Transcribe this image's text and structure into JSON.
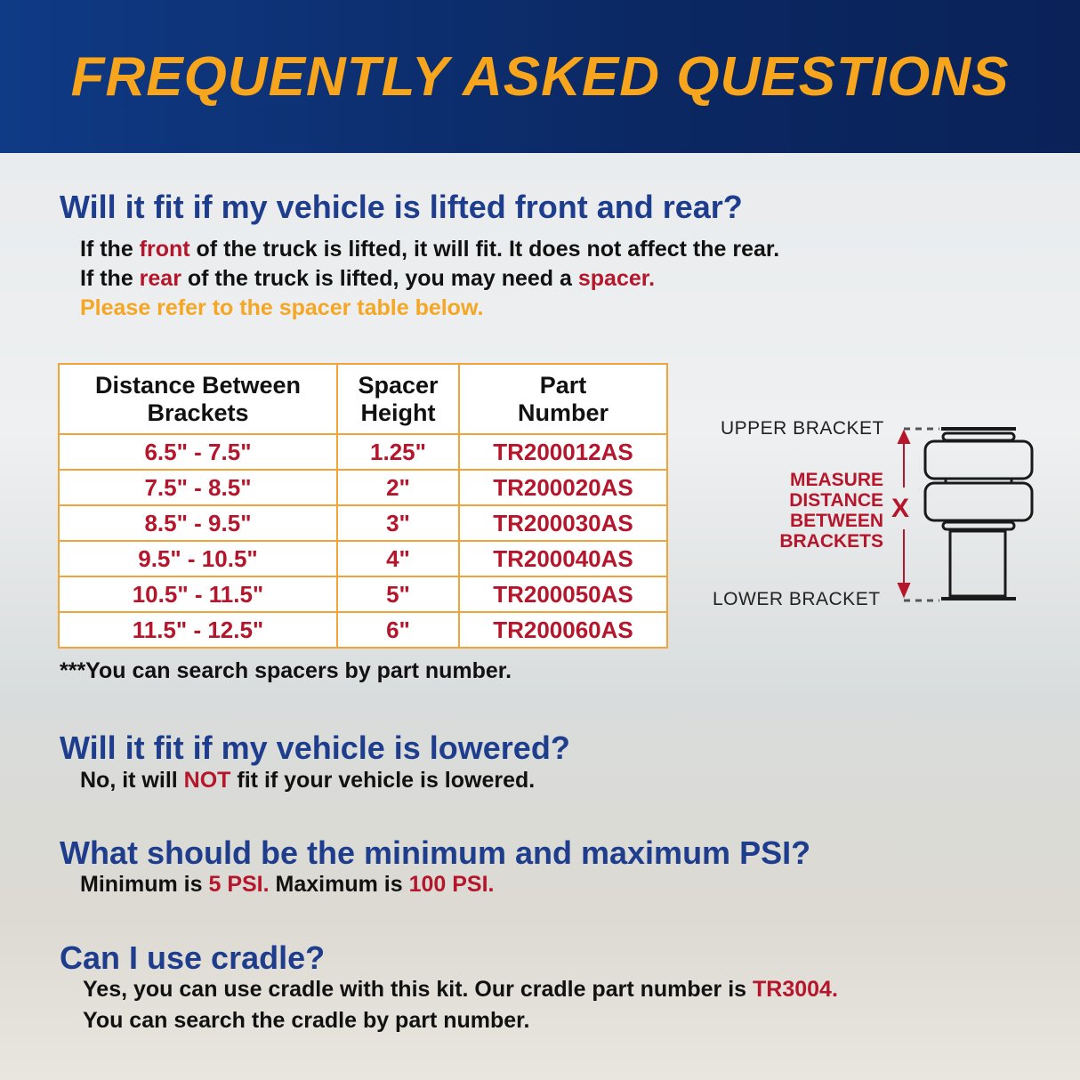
{
  "header": {
    "title": "FREQUENTLY ASKED QUESTIONS"
  },
  "colors": {
    "navy": "#0b2863",
    "orange": "#f7a51c",
    "blue": "#1e3d8d",
    "red": "#b5162b"
  },
  "faq1": {
    "question": "Will it fit if my vehicle is lifted front and rear?",
    "line1": [
      "If the ",
      "front",
      " of the truck is lifted, it will fit. It does not affect the rear."
    ],
    "line2": [
      "If the ",
      "rear",
      " of the truck is lifted, you may need a ",
      "spacer."
    ],
    "line3": "Please refer to the spacer table below."
  },
  "table": {
    "headers": [
      "Distance Between Brackets",
      "Spacer Height",
      "Part Number"
    ],
    "rows": [
      [
        "6.5\" - 7.5\"",
        "1.25\"",
        "TR200012AS"
      ],
      [
        "7.5\" - 8.5\"",
        "2\"",
        "TR200020AS"
      ],
      [
        "8.5\" - 9.5\"",
        "3\"",
        "TR200030AS"
      ],
      [
        "9.5\" - 10.5\"",
        "4\"",
        "TR200040AS"
      ],
      [
        "10.5\" - 11.5\"",
        "5\"",
        "TR200050AS"
      ],
      [
        "11.5\" - 12.5\"",
        "6\"",
        "TR200060AS"
      ]
    ],
    "note": "***You can search spacers by part number."
  },
  "diagram": {
    "upper": "UPPER BRACKET",
    "lower": "LOWER BRACKET",
    "measure": "MEASURE DISTANCE BETWEEN BRACKETS",
    "x": "X"
  },
  "faq2": {
    "question": "Will it fit if my vehicle is lowered?",
    "line": [
      "No, it will ",
      "NOT",
      " fit if your vehicle is lowered."
    ]
  },
  "faq3": {
    "question": "What should be the minimum and maximum PSI?",
    "line": [
      "Minimum is ",
      "5 PSI.",
      " Maximum is ",
      "100 PSI."
    ]
  },
  "faq4": {
    "question": "Can I use cradle?",
    "line1": [
      "Yes, you can use cradle with this kit. Our cradle part number is ",
      "TR3004."
    ],
    "line2": "You can search the cradle by part number."
  }
}
